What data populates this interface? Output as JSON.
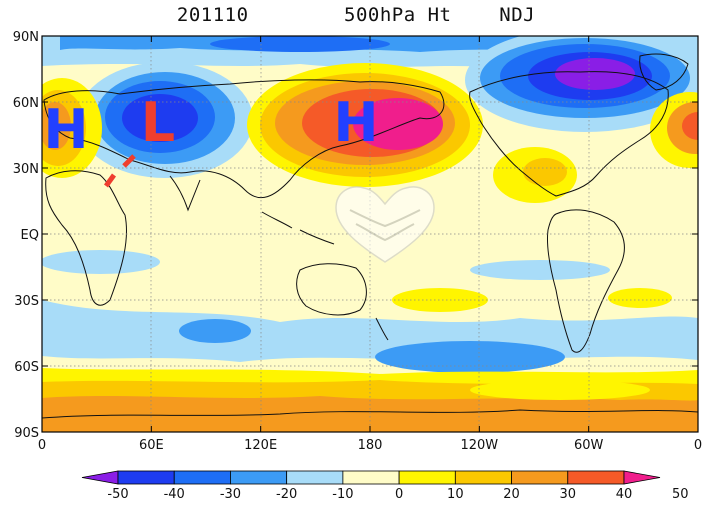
{
  "title": {
    "date": "201110",
    "field": "500hPa Ht",
    "season": "NDJ"
  },
  "map": {
    "type": "anomaly-map",
    "lat_ticks": [
      "90N",
      "60N",
      "30N",
      "EQ",
      "30S",
      "60S",
      "90S"
    ],
    "lon_ticks": [
      "0",
      "60E",
      "120E",
      "180",
      "120W",
      "60W",
      "0"
    ],
    "centers": [
      {
        "label": "H",
        "color": "#2240ff"
      },
      {
        "label": "L",
        "color": "#ef3e2e"
      },
      {
        "label": "H",
        "color": "#2240ff"
      }
    ],
    "trough_line_color": "#ef3e2e",
    "grid": true
  },
  "colorbar": {
    "levels": [
      "-50",
      "-40",
      "-30",
      "-20",
      "-10",
      "0",
      "10",
      "20",
      "30",
      "40",
      "50"
    ],
    "colors": [
      "#8a1ee6",
      "#1e3cf0",
      "#1e6ef5",
      "#3c9bf5",
      "#a8dcf8",
      "#fffcc8",
      "#fff500",
      "#fbc800",
      "#f59a1e",
      "#f55a28",
      "#f01e8c"
    ]
  }
}
